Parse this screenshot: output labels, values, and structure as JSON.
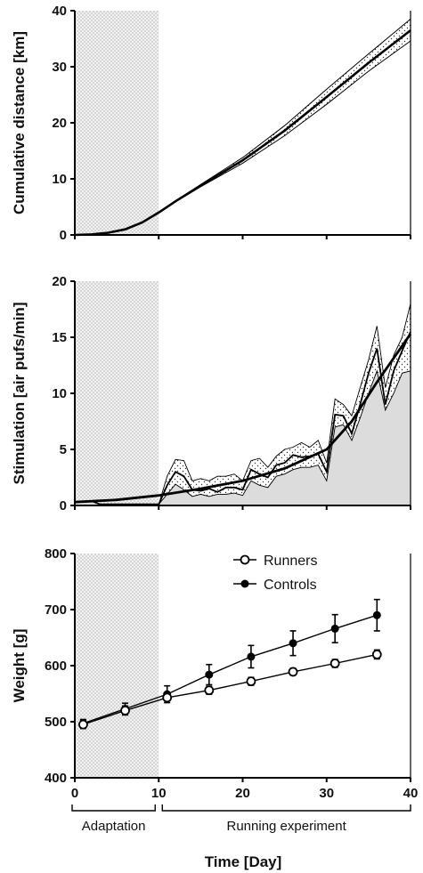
{
  "x_axis": {
    "label": "Time [Day]",
    "range": [
      0,
      40
    ],
    "ticks": [
      "0",
      "10",
      "20",
      "30",
      "40"
    ],
    "phases": [
      {
        "label": "Adaptation",
        "start": 0,
        "end": 10
      },
      {
        "label": "Running experiment",
        "start": 10,
        "end": 40
      }
    ]
  },
  "chart_data": [
    {
      "type": "line",
      "ylabel": "Cumulative distance [km]",
      "ylim": [
        0,
        40
      ],
      "y_ticks": [
        "0",
        "10",
        "20",
        "30",
        "40"
      ],
      "shaded_region_x": [
        0,
        10
      ],
      "series": [
        {
          "role": "mean",
          "x": [
            0,
            2,
            4,
            6,
            8,
            10,
            12,
            15,
            20,
            25,
            30,
            35,
            40
          ],
          "y": [
            0,
            0.1,
            0.4,
            1.0,
            2.2,
            4.0,
            6.0,
            8.8,
            13.3,
            18.6,
            24.6,
            30.7,
            36.5
          ]
        },
        {
          "role": "upper",
          "x": [
            0,
            2,
            4,
            6,
            8,
            10,
            12,
            15,
            20,
            25,
            30,
            35,
            40
          ],
          "y": [
            0,
            0.1,
            0.4,
            1.0,
            2.2,
            4.1,
            6.1,
            9.0,
            13.8,
            19.5,
            26.0,
            32.3,
            38.5
          ]
        },
        {
          "role": "lower",
          "x": [
            0,
            2,
            4,
            6,
            8,
            10,
            12,
            15,
            20,
            25,
            30,
            35,
            40
          ],
          "y": [
            0,
            0.1,
            0.4,
            1.0,
            2.2,
            3.9,
            5.9,
            8.6,
            12.8,
            17.7,
            23.3,
            29.2,
            34.6
          ]
        }
      ]
    },
    {
      "type": "area",
      "ylabel": "Stimulation [air pufs/min]",
      "ylim": [
        0,
        20
      ],
      "y_ticks": [
        "0",
        "5",
        "10",
        "15",
        "20"
      ],
      "shaded_region_x": [
        0,
        10
      ],
      "series": [
        {
          "role": "trend",
          "x": [
            0,
            5,
            10,
            15,
            20,
            25,
            30,
            33,
            36,
            40
          ],
          "y": [
            0.3,
            0.5,
            0.9,
            1.5,
            2.2,
            3.3,
            5.0,
            7.5,
            11.0,
            15.3
          ]
        },
        {
          "role": "mean",
          "x": [
            1,
            2,
            3,
            9,
            10,
            11,
            12,
            13,
            14,
            15,
            16,
            17,
            18,
            19,
            20,
            21,
            22,
            23,
            24,
            25,
            26,
            27,
            28,
            29,
            30,
            31,
            32,
            33,
            34,
            35,
            36,
            37,
            38,
            39,
            40
          ],
          "y": [
            0.3,
            0.4,
            0.1,
            0.1,
            0.1,
            1.8,
            3.0,
            2.6,
            1.4,
            1.3,
            1.5,
            1.2,
            1.6,
            1.6,
            1.4,
            3.2,
            2.8,
            2.5,
            3.6,
            3.8,
            4.5,
            4.3,
            4.4,
            4.6,
            3.0,
            8.1,
            8.0,
            6.4,
            9.0,
            11.8,
            14.0,
            9.0,
            12.0,
            13.8,
            15.5
          ]
        },
        {
          "role": "upper",
          "x": [
            1,
            2,
            3,
            9,
            10,
            11,
            12,
            13,
            14,
            15,
            16,
            17,
            18,
            19,
            20,
            21,
            22,
            23,
            24,
            25,
            26,
            27,
            28,
            29,
            30,
            31,
            32,
            33,
            34,
            35,
            36,
            37,
            38,
            39,
            40
          ],
          "y": [
            0.3,
            0.4,
            0.1,
            0.1,
            0.1,
            2.6,
            4.1,
            4.0,
            2.2,
            2.4,
            2.2,
            2.6,
            2.6,
            2.8,
            2.2,
            4.0,
            4.2,
            3.4,
            4.4,
            5.0,
            5.2,
            5.6,
            5.2,
            5.8,
            3.8,
            9.5,
            9.0,
            8.0,
            10.5,
            13.0,
            16.0,
            10.5,
            13.4,
            15.0,
            18.0
          ]
        },
        {
          "role": "lower",
          "x": [
            1,
            2,
            3,
            9,
            10,
            11,
            12,
            13,
            14,
            15,
            16,
            17,
            18,
            19,
            20,
            21,
            22,
            23,
            24,
            25,
            26,
            27,
            28,
            29,
            30,
            31,
            32,
            33,
            34,
            35,
            36,
            37,
            38,
            39,
            40
          ],
          "y": [
            0.3,
            0.4,
            0.1,
            0.1,
            0.1,
            1.0,
            1.9,
            1.4,
            0.8,
            1.0,
            0.8,
            1.0,
            1.0,
            1.1,
            0.9,
            2.2,
            1.8,
            1.6,
            2.6,
            2.8,
            3.2,
            3.4,
            3.4,
            3.6,
            2.2,
            7.0,
            7.2,
            5.8,
            7.8,
            10.0,
            12.0,
            8.5,
            10.0,
            11.8,
            12.0
          ]
        }
      ]
    },
    {
      "type": "line",
      "ylabel": "Weight [g]",
      "ylim": [
        400,
        800
      ],
      "y_ticks": [
        "400",
        "500",
        "600",
        "700",
        "800"
      ],
      "shaded_region_x": [
        0,
        10
      ],
      "legend_position": "top-right",
      "series": [
        {
          "name": "Runners",
          "marker": "open-circle",
          "x": [
            1,
            6,
            11,
            16,
            21,
            26,
            31,
            36
          ],
          "y": [
            495,
            520,
            543,
            556,
            572,
            589,
            604,
            620
          ],
          "err": [
            7,
            8,
            6,
            7,
            7,
            6,
            7,
            8
          ]
        },
        {
          "name": "Controls",
          "marker": "filled-circle",
          "x": [
            1,
            6,
            11,
            16,
            21,
            26,
            31,
            36
          ],
          "y": [
            497,
            523,
            549,
            584,
            616,
            640,
            666,
            690
          ],
          "err": [
            7,
            10,
            15,
            18,
            20,
            22,
            25,
            28
          ]
        }
      ]
    }
  ]
}
